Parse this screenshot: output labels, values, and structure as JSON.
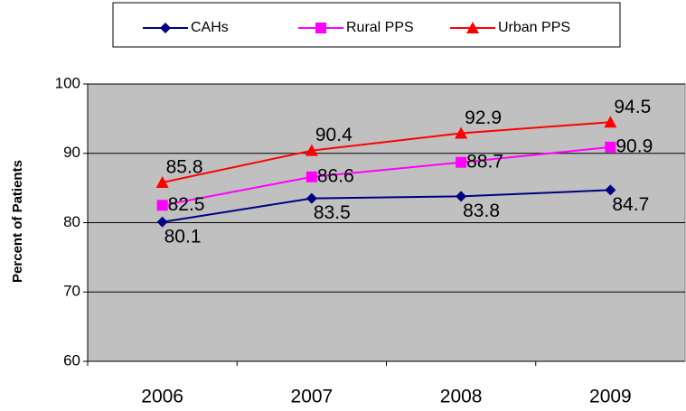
{
  "chart_data": {
    "type": "line",
    "categories": [
      "2006",
      "2007",
      "2008",
      "2009"
    ],
    "series": [
      {
        "name": "CAHs",
        "color": "#000080",
        "marker": "diamond",
        "values": [
          80.1,
          83.5,
          83.8,
          84.7
        ]
      },
      {
        "name": "Rural PPS",
        "color": "#ff00ff",
        "marker": "square",
        "values": [
          82.5,
          86.6,
          88.7,
          90.9
        ]
      },
      {
        "name": "Urban PPS",
        "color": "#ff0000",
        "marker": "triangle",
        "values": [
          85.8,
          90.4,
          92.9,
          94.5
        ]
      }
    ],
    "y_label": "Percent of Patients",
    "ylim": [
      60,
      100
    ],
    "yticks": [
      60,
      70,
      80,
      90,
      100
    ],
    "grid": true,
    "plot_background": "#c0c0c0",
    "legend": "top"
  }
}
